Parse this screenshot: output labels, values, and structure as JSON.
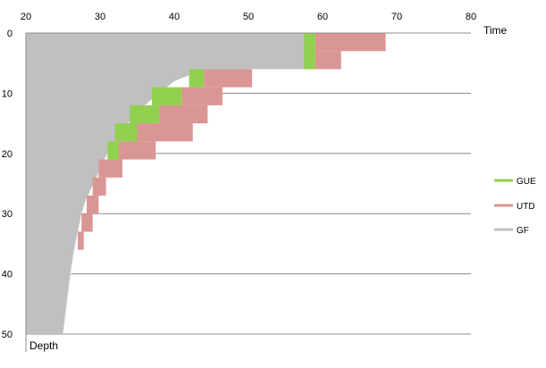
{
  "chart_data": {
    "type": "area",
    "xlabel": "Time",
    "ylabel": "Depth",
    "xlim": [
      20,
      80
    ],
    "ylim": [
      50,
      0
    ],
    "xticks": [
      "20",
      "30",
      "40",
      "50",
      "60",
      "70",
      "80"
    ],
    "yticks": [
      "0",
      "10",
      "20",
      "30",
      "40",
      "50"
    ],
    "grid": "horizontal",
    "legend_position": "right",
    "series": [
      {
        "name": "GF",
        "color": "#c0c0c0",
        "style": "filled area with dashed boundary",
        "profile": [
          [
            58,
            0
          ],
          [
            58,
            6
          ],
          [
            44,
            6
          ],
          [
            40,
            8
          ],
          [
            36,
            12
          ],
          [
            33,
            16
          ],
          [
            31,
            20
          ],
          [
            29.5,
            24
          ],
          [
            28,
            28
          ],
          [
            27.5,
            30
          ],
          [
            27,
            33
          ],
          [
            26.5,
            36
          ],
          [
            26,
            40
          ],
          [
            25.5,
            45
          ],
          [
            25,
            50
          ]
        ]
      },
      {
        "name": "UTD",
        "color": "#d99694",
        "style": "stepped band",
        "segments": [
          {
            "depth": [
              0,
              3
            ],
            "time": [
              59,
              68.5
            ]
          },
          {
            "depth": [
              3,
              6
            ],
            "time": [
              59,
              62.5
            ]
          },
          {
            "depth": [
              6,
              9
            ],
            "time": [
              44,
              50.5
            ]
          },
          {
            "depth": [
              9,
              12
            ],
            "time": [
              41,
              46.5
            ]
          },
          {
            "depth": [
              12,
              15
            ],
            "time": [
              38,
              44.5
            ]
          },
          {
            "depth": [
              15,
              18
            ],
            "time": [
              34,
              42.5
            ]
          },
          {
            "depth": [
              18,
              21
            ],
            "time": [
              31.5,
              37.5
            ]
          },
          {
            "depth": [
              21,
              24
            ],
            "time": [
              29.8,
              33
            ]
          },
          {
            "depth": [
              24,
              27
            ],
            "time": [
              29,
              30.8
            ]
          },
          {
            "depth": [
              27,
              30
            ],
            "time": [
              28.2,
              29.8
            ]
          },
          {
            "depth": [
              30,
              33
            ],
            "time": [
              27.5,
              29
            ]
          },
          {
            "depth": [
              33,
              36
            ],
            "time": [
              27,
              27.8
            ]
          }
        ]
      },
      {
        "name": "GUE",
        "color": "#92d050",
        "style": "stepped band",
        "segments": [
          {
            "depth": [
              0,
              6
            ],
            "time": [
              57.5,
              59
            ]
          },
          {
            "depth": [
              6,
              9
            ],
            "time": [
              42,
              44
            ]
          },
          {
            "depth": [
              9,
              12
            ],
            "time": [
              37,
              41
            ]
          },
          {
            "depth": [
              12,
              15
            ],
            "time": [
              34,
              38
            ]
          },
          {
            "depth": [
              15,
              18
            ],
            "time": [
              32,
              35
            ]
          },
          {
            "depth": [
              18,
              21
            ],
            "time": [
              31,
              32.5
            ]
          }
        ]
      }
    ],
    "legend": [
      "GUE",
      "UTD",
      "GF"
    ]
  }
}
